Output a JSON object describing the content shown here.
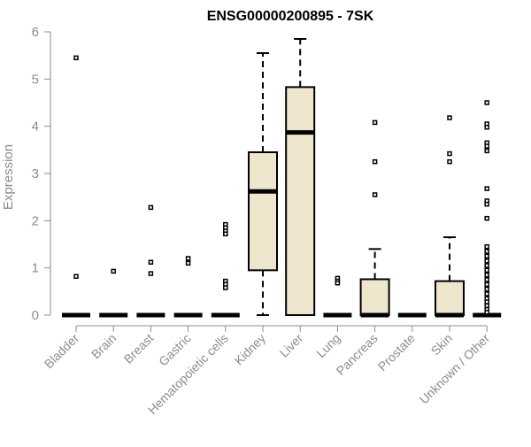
{
  "chart_data": {
    "type": "boxplot",
    "title": "ENSG00000200895 - 7SK",
    "ylabel": "Expression",
    "xlabel": "",
    "ylim": [
      0,
      6
    ],
    "yticks": [
      0,
      1,
      2,
      3,
      4,
      5,
      6
    ],
    "grid": false,
    "legend": "none",
    "colors": {
      "box_fill": "#ede6cc",
      "stroke": "#000000",
      "axis": "#8c8c8c"
    },
    "categories": [
      "Bladder",
      "Brain",
      "Breast",
      "Gastric",
      "Hematopoietic cells",
      "Kidney",
      "Liver",
      "Lung",
      "Pancreas",
      "Prostate",
      "Skin",
      "Unknown / Other"
    ],
    "boxes": [
      {
        "category": "Bladder",
        "whisker_low": 0,
        "q1": 0,
        "median": 0,
        "q3": 0,
        "whisker_high": 0,
        "outliers": [
          5.45,
          0.82
        ]
      },
      {
        "category": "Brain",
        "whisker_low": 0,
        "q1": 0,
        "median": 0,
        "q3": 0,
        "whisker_high": 0,
        "outliers": [
          0.93
        ]
      },
      {
        "category": "Breast",
        "whisker_low": 0,
        "q1": 0,
        "median": 0,
        "q3": 0,
        "whisker_high": 0,
        "outliers": [
          2.28,
          1.12,
          0.88
        ]
      },
      {
        "category": "Gastric",
        "whisker_low": 0,
        "q1": 0,
        "median": 0,
        "q3": 0,
        "whisker_high": 0,
        "outliers": [
          1.2,
          1.1
        ]
      },
      {
        "category": "Hematopoietic cells",
        "whisker_low": 0,
        "q1": 0,
        "median": 0,
        "q3": 0,
        "whisker_high": 0,
        "outliers": [
          1.92,
          1.85,
          1.78,
          1.72,
          0.72,
          0.65,
          0.58
        ]
      },
      {
        "category": "Kidney",
        "whisker_low": 0,
        "q1": 0.95,
        "median": 2.62,
        "q3": 3.45,
        "whisker_high": 5.55,
        "outliers": []
      },
      {
        "category": "Liver",
        "whisker_low": 0,
        "q1": 0,
        "median": 3.87,
        "q3": 4.83,
        "whisker_high": 5.85,
        "outliers": []
      },
      {
        "category": "Lung",
        "whisker_low": 0,
        "q1": 0,
        "median": 0,
        "q3": 0,
        "whisker_high": 0,
        "outliers": [
          0.78,
          0.72,
          0.68
        ]
      },
      {
        "category": "Pancreas",
        "whisker_low": 0,
        "q1": 0,
        "median": 0,
        "q3": 0.76,
        "whisker_high": 1.4,
        "outliers": [
          4.08,
          3.25,
          2.55
        ]
      },
      {
        "category": "Prostate",
        "whisker_low": 0,
        "q1": 0,
        "median": 0,
        "q3": 0,
        "whisker_high": 0,
        "outliers": []
      },
      {
        "category": "Skin",
        "whisker_low": 0,
        "q1": 0,
        "median": 0,
        "q3": 0.72,
        "whisker_high": 1.65,
        "outliers": [
          4.18,
          3.42,
          3.25
        ]
      },
      {
        "category": "Unknown / Other",
        "whisker_low": 0,
        "q1": 0,
        "median": 0,
        "q3": 0,
        "whisker_high": 0,
        "outliers": [
          4.5,
          4.05,
          3.98,
          3.65,
          3.58,
          3.48,
          2.68,
          2.42,
          2.35,
          2.05,
          1.45,
          1.35,
          1.25,
          1.15,
          1.05,
          0.95,
          0.85,
          0.75,
          0.65,
          0.55,
          0.45,
          0.35,
          0.28,
          0.2,
          0.12,
          0.06
        ]
      }
    ]
  }
}
